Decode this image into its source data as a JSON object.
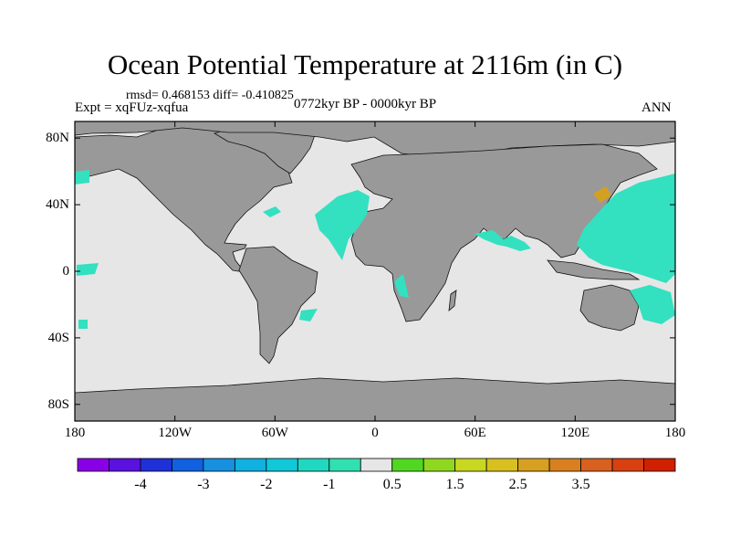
{
  "title": "Ocean Potential Temperature at 2116m (in C)",
  "stats": "rmsd= 0.468153 diff= -0.410825",
  "expt": "Expt = xqFUz-xqfua",
  "period": "0772kyr BP - 0000kyr BP",
  "season": "ANN",
  "colors": {
    "land": "#999999",
    "ocean_neutral": "#e6e6e6",
    "anomaly_neg": "#33e0c0",
    "anomaly_pos": "#d4a020"
  },
  "map": {
    "lat_labels": [
      "80N",
      "40N",
      "0",
      "40S",
      "80S"
    ],
    "lon_labels": [
      "180",
      "120W",
      "60W",
      "0",
      "60E",
      "120E",
      "180"
    ],
    "lat_values": [
      80,
      40,
      0,
      -40,
      -80
    ],
    "lon_values": [
      -180,
      -120,
      -60,
      0,
      60,
      120,
      180
    ]
  },
  "colorbar": {
    "colors": [
      "#8a00e6",
      "#5a12e0",
      "#2030d8",
      "#1060e0",
      "#1890e0",
      "#10b0e0",
      "#10c8d8",
      "#20d8c0",
      "#30e0b0",
      "#e6e6e6",
      "#50d820",
      "#90d820",
      "#c8d820",
      "#d8c020",
      "#d8a020",
      "#d88020",
      "#d86020",
      "#d84010",
      "#d02000"
    ],
    "labels": [
      "-4",
      "-3",
      "-2",
      "-1",
      "0.5",
      "1.5",
      "2.5",
      "3.5"
    ]
  }
}
